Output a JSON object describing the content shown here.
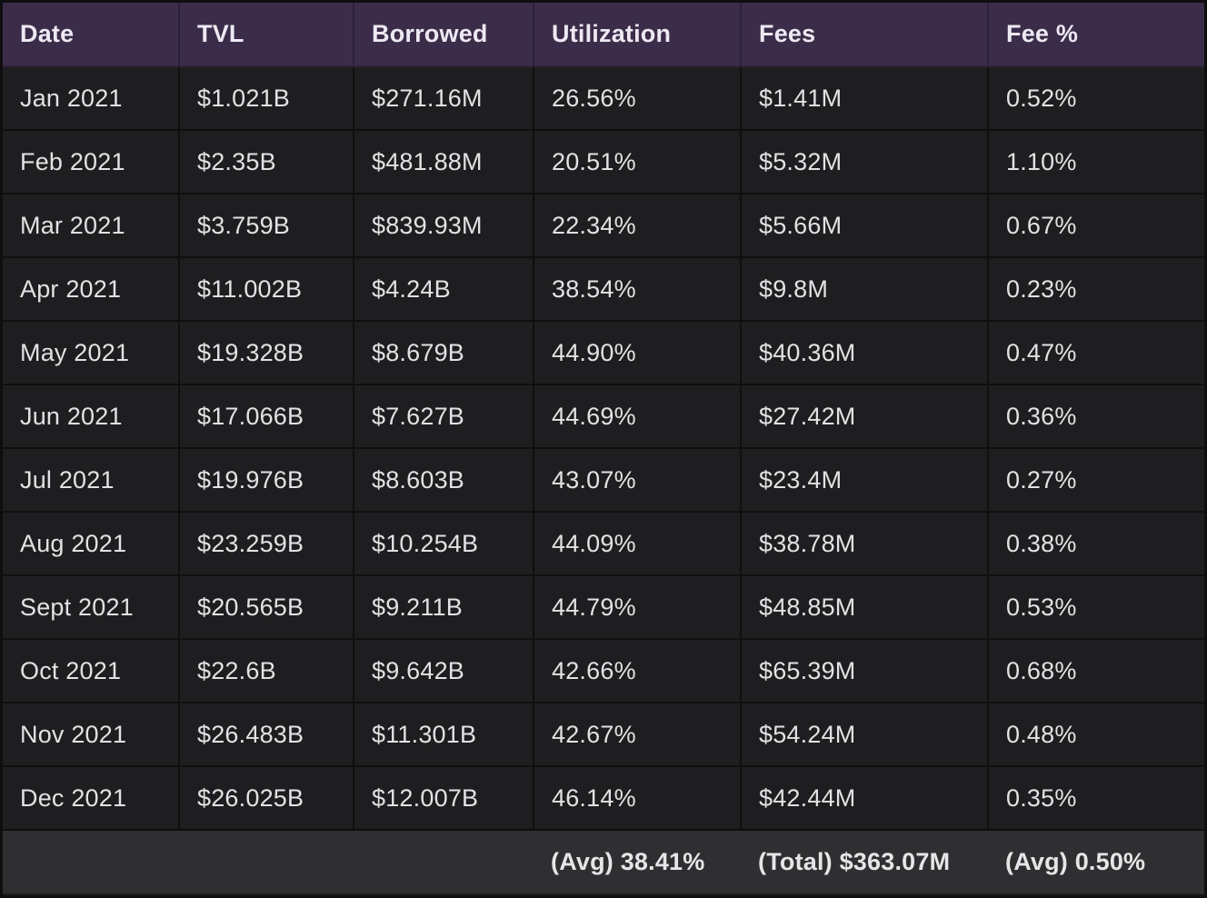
{
  "table": {
    "headers": [
      "Date",
      "TVL",
      "Borrowed",
      "Utilization",
      "Fees",
      "Fee %"
    ],
    "rows": [
      [
        "Jan 2021",
        "$1.021B",
        "$271.16M",
        "26.56%",
        "$1.41M",
        "0.52%"
      ],
      [
        "Feb 2021",
        "$2.35B",
        "$481.88M",
        "20.51%",
        "$5.32M",
        "1.10%"
      ],
      [
        "Mar 2021",
        "$3.759B",
        "$839.93M",
        "22.34%",
        "$5.66M",
        "0.67%"
      ],
      [
        "Apr 2021",
        "$11.002B",
        "$4.24B",
        "38.54%",
        "$9.8M",
        "0.23%"
      ],
      [
        "May 2021",
        "$19.328B",
        "$8.679B",
        "44.90%",
        "$40.36M",
        "0.47%"
      ],
      [
        "Jun 2021",
        "$17.066B",
        "$7.627B",
        "44.69%",
        "$27.42M",
        "0.36%"
      ],
      [
        "Jul 2021",
        "$19.976B",
        "$8.603B",
        "43.07%",
        "$23.4M",
        "0.27%"
      ],
      [
        "Aug 2021",
        "$23.259B",
        "$10.254B",
        "44.09%",
        "$38.78M",
        "0.38%"
      ],
      [
        "Sept 2021",
        "$20.565B",
        "$9.211B",
        "44.79%",
        "$48.85M",
        "0.53%"
      ],
      [
        "Oct 2021",
        "$22.6B",
        "$9.642B",
        "42.66%",
        "$65.39M",
        "0.68%"
      ],
      [
        "Nov 2021",
        "$26.483B",
        "$11.301B",
        "42.67%",
        "$54.24M",
        "0.48%"
      ],
      [
        "Dec 2021",
        "$26.025B",
        "$12.007B",
        "46.14%",
        "$42.44M",
        "0.35%"
      ]
    ],
    "footer": {
      "utilization": "(Avg) 38.41%",
      "fees": "(Total) $363.07M",
      "fee_pct": "(Avg) 0.50%"
    }
  },
  "colors": {
    "header_bg": "#3b2d4a",
    "row_bg": "#1e1e20",
    "footer_bg": "#2f2f31",
    "grid_line": "#0f0f10",
    "text": "#e2e2e4"
  }
}
